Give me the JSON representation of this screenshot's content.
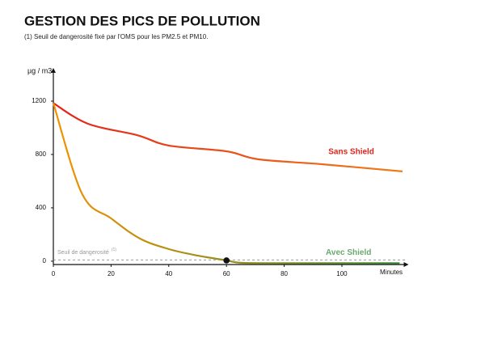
{
  "chart_data": {
    "type": "line",
    "title": "GESTION DES PICS DE POLLUTION",
    "subtitle": "(1) Seuil de dangerosité fixé par l'OMS pour les PM2.5 et PM10.",
    "y_label": "µg / m3",
    "x_label": "Minutes",
    "xlim": [
      0,
      122
    ],
    "xticks": [
      0,
      20,
      40,
      60,
      80,
      100
    ],
    "ylim": [
      -25,
      1400
    ],
    "yticks": [
      0,
      400,
      800,
      1200
    ],
    "threshold": {
      "value": 10,
      "label": "Seuil de dangerosité",
      "note": "(1)"
    },
    "highlight_point": {
      "x": 60,
      "y": 6
    },
    "series": [
      {
        "name": "Sans Shield",
        "colors": [
          "#e2231a",
          "#f07d1c"
        ],
        "label_color": "#e2231a",
        "x": [
          0,
          12,
          29,
          40,
          60,
          71,
          93,
          121
        ],
        "values": [
          1185,
          1030,
          945,
          867,
          824,
          764,
          727,
          673
        ]
      },
      {
        "name": "Avec Shield",
        "colors": [
          "#f39200",
          "#3a8a3a"
        ],
        "label_color": "#6aaa6e",
        "x": [
          0,
          10,
          20,
          30,
          40,
          50,
          60,
          65,
          80,
          120
        ],
        "values": [
          1185,
          503,
          321,
          170,
          91,
          42,
          6,
          -12,
          -15,
          -15
        ]
      }
    ]
  }
}
